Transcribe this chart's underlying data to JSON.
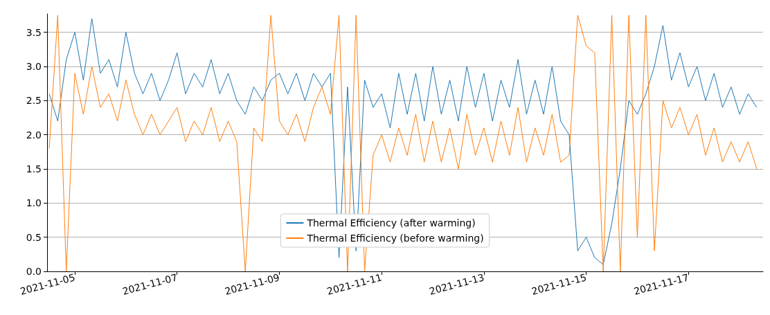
{
  "chart_data": {
    "type": "line",
    "x": [
      "2021-11-04T12:00",
      "2021-11-04T16:00",
      "2021-11-04T20:00",
      "2021-11-05T00:00",
      "2021-11-05T04:00",
      "2021-11-05T08:00",
      "2021-11-05T12:00",
      "2021-11-05T16:00",
      "2021-11-05T20:00",
      "2021-11-06T00:00",
      "2021-11-06T04:00",
      "2021-11-06T08:00",
      "2021-11-06T12:00",
      "2021-11-06T16:00",
      "2021-11-06T20:00",
      "2021-11-07T00:00",
      "2021-11-07T04:00",
      "2021-11-07T08:00",
      "2021-11-07T12:00",
      "2021-11-07T16:00",
      "2021-11-07T20:00",
      "2021-11-08T00:00",
      "2021-11-08T04:00",
      "2021-11-08T08:00",
      "2021-11-08T12:00",
      "2021-11-08T16:00",
      "2021-11-08T20:00",
      "2021-11-09T00:00",
      "2021-11-09T04:00",
      "2021-11-09T08:00",
      "2021-11-09T12:00",
      "2021-11-09T16:00",
      "2021-11-09T20:00",
      "2021-11-10T00:00",
      "2021-11-10T04:00",
      "2021-11-10T08:00",
      "2021-11-10T12:00",
      "2021-11-10T16:00",
      "2021-11-10T20:00",
      "2021-11-11T00:00",
      "2021-11-11T04:00",
      "2021-11-11T08:00",
      "2021-11-11T12:00",
      "2021-11-11T16:00",
      "2021-11-11T20:00",
      "2021-11-12T00:00",
      "2021-11-12T04:00",
      "2021-11-12T08:00",
      "2021-11-12T12:00",
      "2021-11-12T16:00",
      "2021-11-12T20:00",
      "2021-11-13T00:00",
      "2021-11-13T04:00",
      "2021-11-13T08:00",
      "2021-11-13T12:00",
      "2021-11-13T16:00",
      "2021-11-13T20:00",
      "2021-11-14T00:00",
      "2021-11-14T04:00",
      "2021-11-14T08:00",
      "2021-11-14T12:00",
      "2021-11-14T16:00",
      "2021-11-14T20:00",
      "2021-11-15T00:00",
      "2021-11-15T04:00",
      "2021-11-15T08:00",
      "2021-11-15T12:00",
      "2021-11-15T16:00",
      "2021-11-15T20:00",
      "2021-11-16T00:00",
      "2021-11-16T04:00",
      "2021-11-16T08:00",
      "2021-11-16T12:00",
      "2021-11-16T16:00",
      "2021-11-16T20:00",
      "2021-11-17T00:00",
      "2021-11-17T04:00",
      "2021-11-17T08:00",
      "2021-11-17T12:00",
      "2021-11-17T16:00",
      "2021-11-17T20:00",
      "2021-11-18T00:00",
      "2021-11-18T04:00",
      "2021-11-18T08:00"
    ],
    "series": [
      {
        "name": "Thermal Efficiency (after warming)",
        "color": "#1f77b4",
        "values": [
          2.6,
          2.2,
          3.1,
          3.5,
          2.8,
          3.7,
          2.9,
          3.1,
          2.7,
          3.5,
          2.9,
          2.6,
          2.9,
          2.5,
          2.8,
          3.2,
          2.6,
          2.9,
          2.7,
          3.1,
          2.6,
          2.9,
          2.5,
          2.3,
          2.7,
          2.5,
          2.8,
          2.9,
          2.6,
          2.9,
          2.5,
          2.9,
          2.7,
          2.9,
          0.2,
          2.7,
          0.3,
          2.8,
          2.4,
          2.6,
          2.1,
          2.9,
          2.3,
          2.9,
          2.2,
          3.0,
          2.3,
          2.8,
          2.2,
          3.0,
          2.4,
          2.9,
          2.2,
          2.8,
          2.4,
          3.1,
          2.3,
          2.8,
          2.3,
          3.0,
          2.2,
          2.0,
          0.3,
          0.5,
          0.2,
          0.1,
          0.7,
          1.5,
          2.5,
          2.3,
          2.6,
          3.0,
          3.6,
          2.8,
          3.2,
          2.7,
          3.0,
          2.5,
          2.9,
          2.4,
          2.7,
          2.3,
          2.6,
          2.4
        ]
      },
      {
        "name": "Thermal Efficiency (before warming)",
        "color": "#ff7f0e",
        "values": [
          1.8,
          3.75,
          0.0,
          2.9,
          2.3,
          3.0,
          2.4,
          2.6,
          2.2,
          2.8,
          2.3,
          2.0,
          2.3,
          2.0,
          2.2,
          2.4,
          1.9,
          2.2,
          2.0,
          2.4,
          1.9,
          2.2,
          1.9,
          0.0,
          2.1,
          1.9,
          3.75,
          2.2,
          2.0,
          2.3,
          1.9,
          2.4,
          2.7,
          2.3,
          3.75,
          0.0,
          3.75,
          0.0,
          1.7,
          2.0,
          1.6,
          2.1,
          1.7,
          2.3,
          1.6,
          2.2,
          1.6,
          2.1,
          1.5,
          2.3,
          1.7,
          2.1,
          1.6,
          2.2,
          1.7,
          2.4,
          1.6,
          2.1,
          1.7,
          2.3,
          1.6,
          1.7,
          3.75,
          3.3,
          3.2,
          0.0,
          3.75,
          0.0,
          3.75,
          0.5,
          3.75,
          0.3,
          2.5,
          2.1,
          2.4,
          2.0,
          2.3,
          1.7,
          2.1,
          1.6,
          1.9,
          1.6,
          1.9,
          1.5
        ]
      }
    ],
    "xlim": [
      "2021-11-04T11:00",
      "2021-11-18T11:00"
    ],
    "xticks": [
      "2021-11-05",
      "2021-11-07",
      "2021-11-09",
      "2021-11-11",
      "2021-11-13",
      "2021-11-15",
      "2021-11-17"
    ],
    "ylim": [
      0,
      3.77
    ],
    "yticks": [
      {
        "value": 0,
        "label": "0.0"
      },
      0.5,
      {
        "value": 1,
        "label": "1.0"
      },
      1.5,
      {
        "value": 2,
        "label": "2.0"
      },
      2.5,
      {
        "value": 3,
        "label": "3.0"
      },
      3.5
    ],
    "grid": "y",
    "legend": "bottom"
  }
}
